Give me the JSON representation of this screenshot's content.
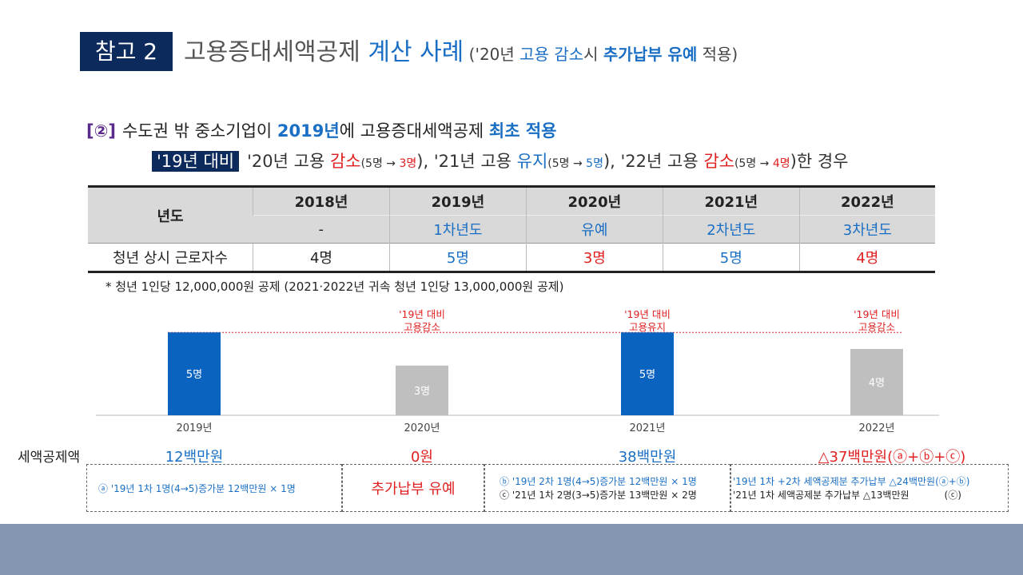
{
  "header": {
    "ref_label": "참고 2",
    "title_main": "고용증대세액공제 ",
    "title_blue": "계산 사례",
    "sub_open": " ('20년 ",
    "sub_blue": "고용 감소",
    "sub_mid": "시 ",
    "sub_bold": "추가납부 유예",
    "sub_close": " 적용)"
  },
  "case": {
    "mark": "[②]",
    "text1": "수도권 밖 중소기업이 ",
    "year": "2019년",
    "text2": "에 고용증대세액공제 ",
    "first": "최초 적용"
  },
  "subline": {
    "highlight": "'19년 대비",
    "p1": "'20년 고용 ",
    "p1_red": "감소",
    "p1_small_open": "(5명 → ",
    "p1_small_val": "3명",
    "p1_small_close": "), ",
    "p2": "'21년 고용 ",
    "p2_blue": "유지",
    "p2_small_open": "(5명 → ",
    "p2_small_val": "5명",
    "p2_small_close": "), ",
    "p3": "'22년 고용 ",
    "p3_red": "감소",
    "p3_small_open": "(5명 → ",
    "p3_small_val": "4명",
    "p3_small_close": ")",
    "tail": "한 경우"
  },
  "table": {
    "year_label": "년도",
    "years": [
      "2018년",
      "2019년",
      "2020년",
      "2021년",
      "2022년"
    ],
    "stages": [
      "-",
      "1차년도",
      "유예",
      "2차년도",
      "3차년도"
    ],
    "count_label": "청년 상시 근로자수",
    "counts": [
      "4명",
      "5명",
      "3명",
      "5명",
      "4명"
    ],
    "count_colors": [
      "#222222",
      "#1a6fc4",
      "#e02020",
      "#1a6fc4",
      "#e02020"
    ]
  },
  "note": "* 청년 1인당 12,000,000원 공제 (2021·2022년 귀속 청년 1인당 13,000,000원 공제)",
  "chart_data": {
    "type": "bar",
    "categories": [
      "2019년",
      "2020년",
      "2021년",
      "2022년"
    ],
    "values": [
      5,
      3,
      5,
      4
    ],
    "value_labels": [
      "5명",
      "3명",
      "5명",
      "4명"
    ],
    "bar_colors": [
      "#0b63c0",
      "#bfbfbf",
      "#0b63c0",
      "#bfbfbf"
    ],
    "reference_value": 5,
    "reference_line_color": "#e02020",
    "annotations": [
      {
        "category": "2020년",
        "line1": "'19년 대비",
        "line2": "고용감소"
      },
      {
        "category": "2021년",
        "line1": "'19년 대비",
        "line2": "고용유지"
      },
      {
        "category": "2022년",
        "line1": "'19년 대비",
        "line2": "고용감소"
      }
    ],
    "ylim": [
      0,
      5.3
    ],
    "grid": false
  },
  "amounts": {
    "label": "세액공제액",
    "values": [
      "12백만원",
      "0원",
      "38백만원",
      "△37백만원(ⓐ+ⓑ+ⓒ)"
    ]
  },
  "details": {
    "box1": "ⓐ '19년 1차 1명(4→5)증가분 12백만원 × 1명",
    "box2": "추가납부 유예",
    "box3_line1": "ⓑ '19년  2차 1명(4→5)증가분 12백만원 × 1명",
    "box3_line2": "ⓒ '21년  1차 2명(3→5)증가분 13백만원 × 2명",
    "box4_line1": "'19년 1차 +2차 세액공제분 추가납부  △24백만원(ⓐ+ⓑ)",
    "box4_line2a": "'21년  1차  세액공제분  추가납부  △13백만원",
    "box4_line2b": "(ⓒ)"
  }
}
